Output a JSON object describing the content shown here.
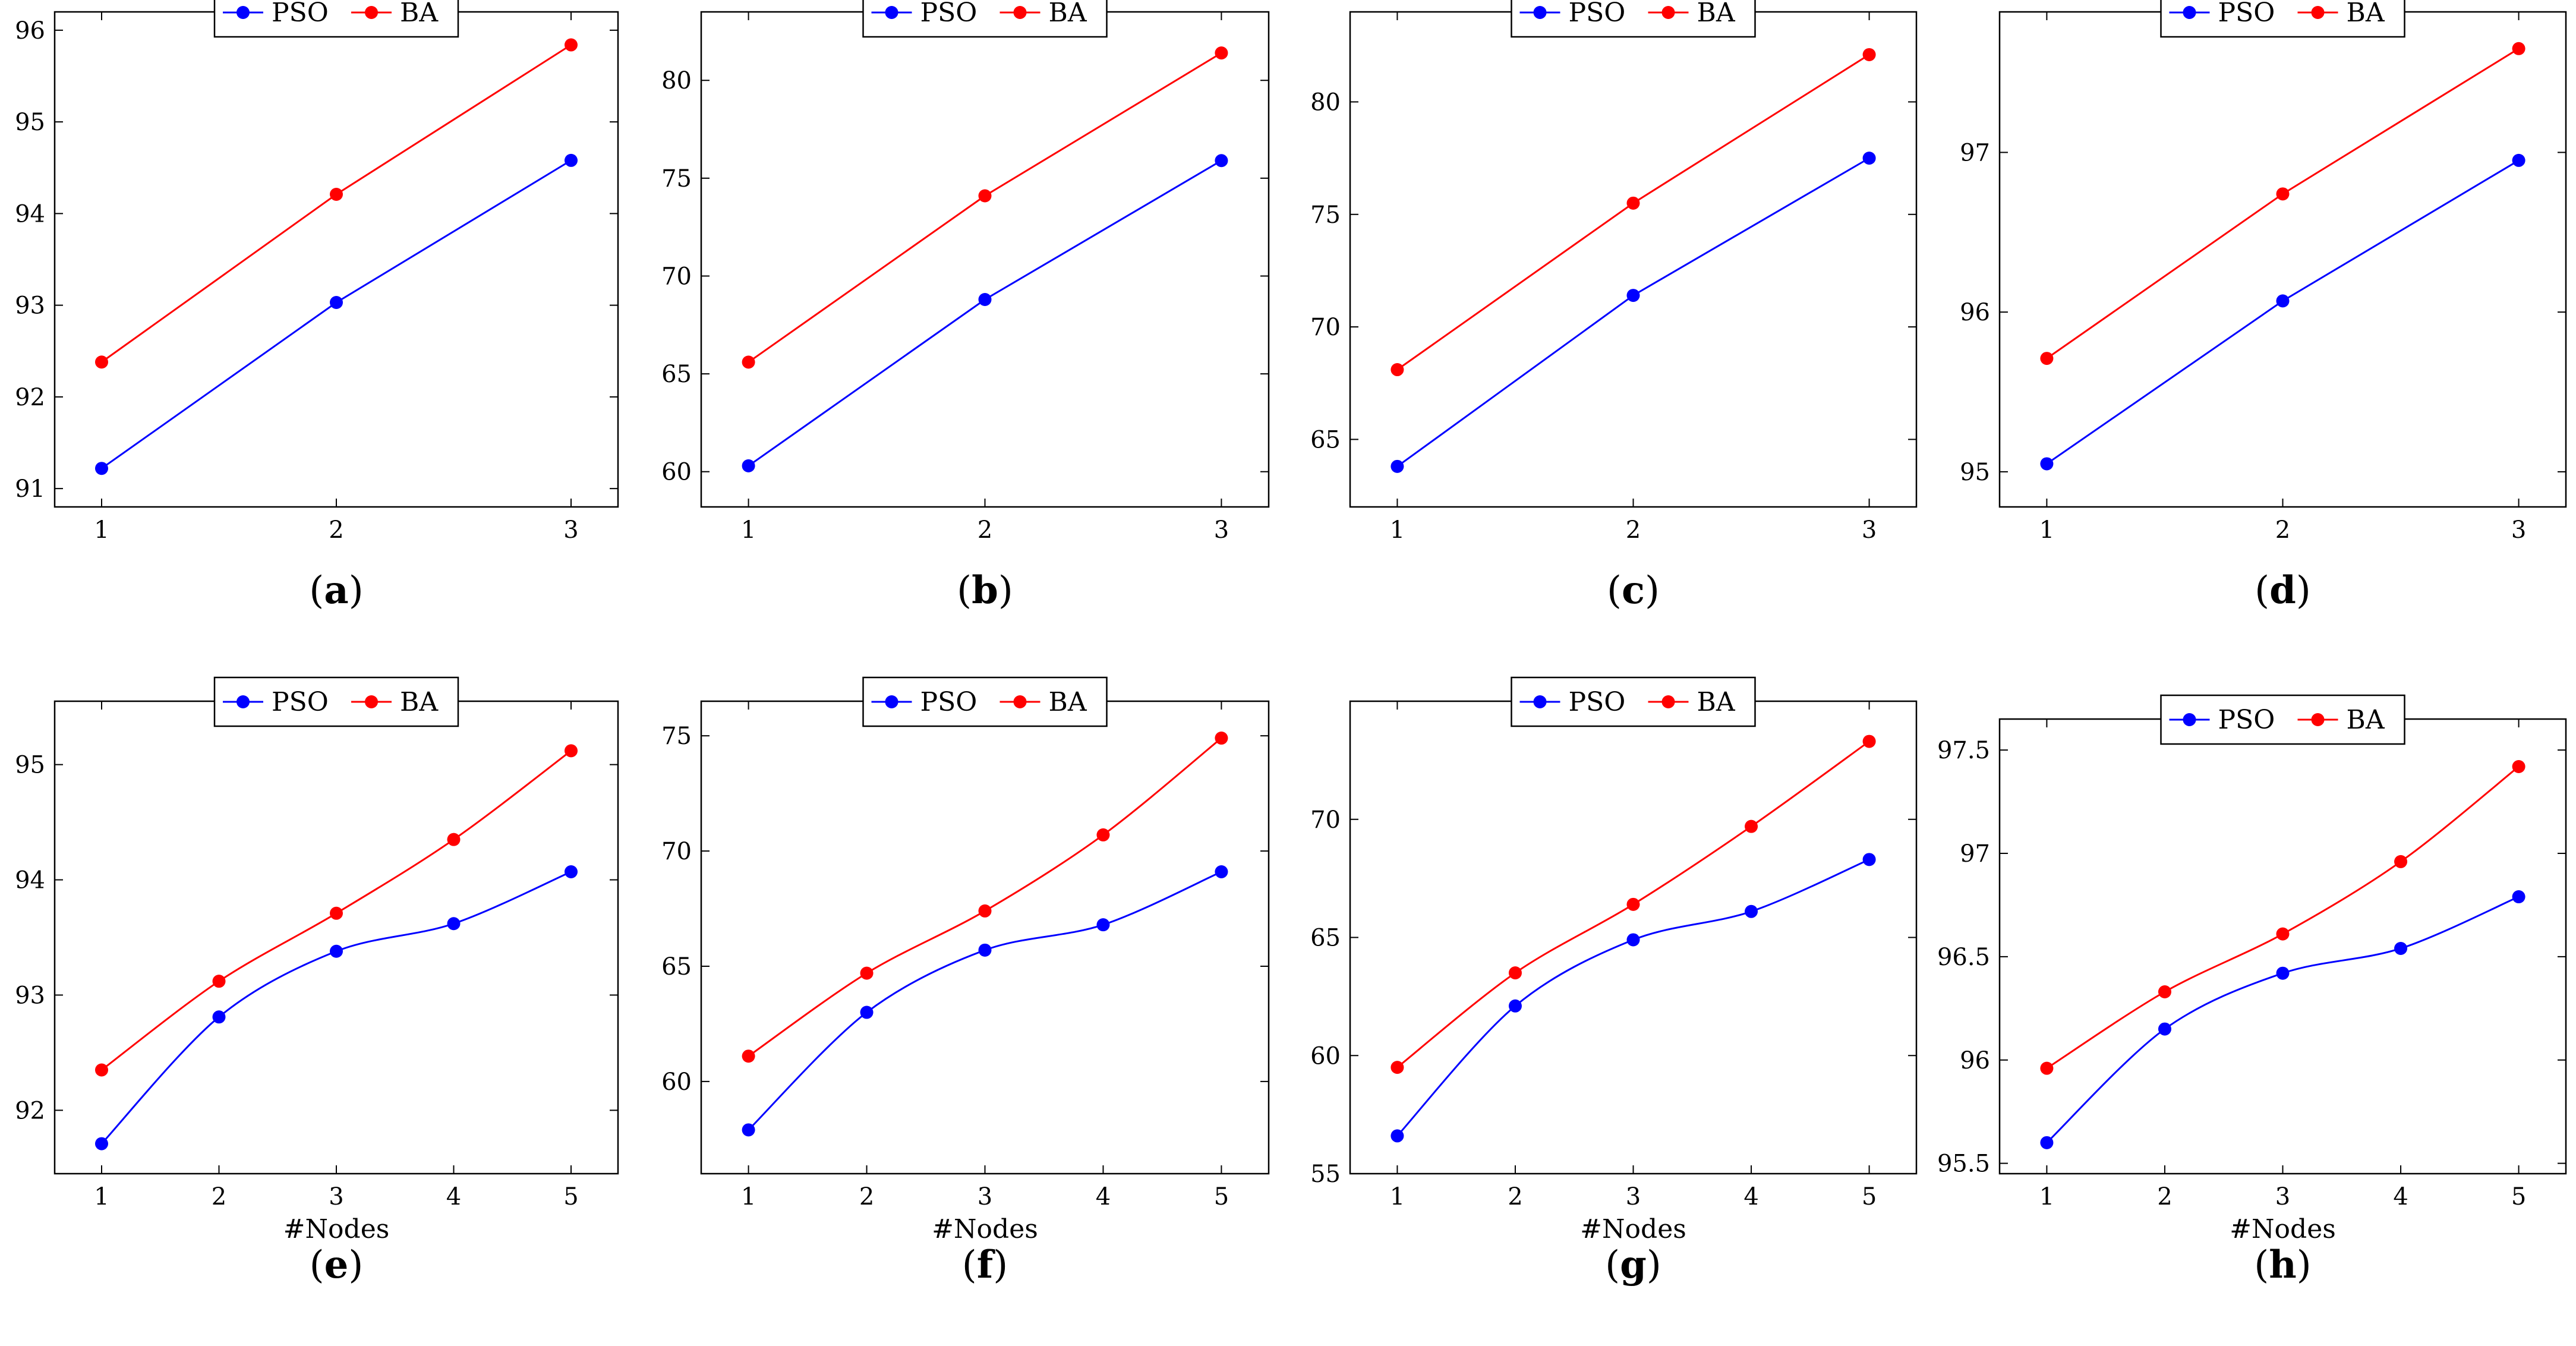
{
  "colors": {
    "pso": "#0000ff",
    "ba": "#ff0000",
    "axis": "#000000"
  },
  "legend": {
    "pso": "PSO",
    "ba": "BA"
  },
  "chart_data": [
    {
      "type": "line",
      "caption": "a",
      "x": [
        1,
        2,
        3
      ],
      "xlim": [
        0.8,
        3.2
      ],
      "ylim": [
        90.8,
        96.2
      ],
      "xticks": [
        "1",
        "2",
        "3"
      ],
      "yticks": [
        91,
        92,
        93,
        94,
        95,
        96
      ],
      "ytick_labels": [
        "91",
        "92",
        "93",
        "94",
        "95",
        "96"
      ],
      "xlabel": "",
      "legend_position": "top-center",
      "series": [
        {
          "name": "PSO",
          "values": [
            91.22,
            93.03,
            94.58
          ]
        },
        {
          "name": "BA",
          "values": [
            92.38,
            94.21,
            95.84
          ]
        }
      ]
    },
    {
      "type": "line",
      "caption": "b",
      "x": [
        1,
        2,
        3
      ],
      "xlim": [
        0.8,
        3.2
      ],
      "ylim": [
        58.2,
        83.5
      ],
      "xticks": [
        "1",
        "2",
        "3"
      ],
      "yticks": [
        60,
        65,
        70,
        75,
        80
      ],
      "ytick_labels": [
        "60",
        "65",
        "70",
        "75",
        "80"
      ],
      "xlabel": "",
      "legend_position": "top-center",
      "series": [
        {
          "name": "PSO",
          "values": [
            60.3,
            68.8,
            75.9
          ]
        },
        {
          "name": "BA",
          "values": [
            65.6,
            74.1,
            81.4
          ]
        }
      ]
    },
    {
      "type": "line",
      "caption": "c",
      "x": [
        1,
        2,
        3
      ],
      "xlim": [
        0.8,
        3.2
      ],
      "ylim": [
        62.0,
        84.0
      ],
      "xticks": [
        "1",
        "2",
        "3"
      ],
      "yticks": [
        65,
        70,
        75,
        80
      ],
      "ytick_labels": [
        "65",
        "70",
        "75",
        "80"
      ],
      "xlabel": "",
      "legend_position": "top-center",
      "series": [
        {
          "name": "PSO",
          "values": [
            63.8,
            71.4,
            77.5
          ]
        },
        {
          "name": "BA",
          "values": [
            68.1,
            75.5,
            82.1
          ]
        }
      ]
    },
    {
      "type": "line",
      "caption": "d",
      "x": [
        1,
        2,
        3
      ],
      "xlim": [
        0.8,
        3.2
      ],
      "ylim": [
        94.78,
        97.88
      ],
      "xticks": [
        "1",
        "2",
        "3"
      ],
      "yticks": [
        95,
        96,
        97
      ],
      "ytick_labels": [
        "95",
        "96",
        "97"
      ],
      "xlabel": "",
      "legend_position": "top-center",
      "series": [
        {
          "name": "PSO",
          "values": [
            95.05,
            96.07,
            96.95
          ]
        },
        {
          "name": "BA",
          "values": [
            95.71,
            96.74,
            97.65
          ]
        }
      ]
    },
    {
      "type": "line",
      "caption": "e",
      "x": [
        1,
        2,
        3,
        4,
        5
      ],
      "xlim": [
        0.6,
        5.4
      ],
      "ylim": [
        91.45,
        95.55
      ],
      "xticks": [
        "1",
        "2",
        "3",
        "4",
        "5"
      ],
      "yticks": [
        92,
        93,
        94,
        95
      ],
      "ytick_labels": [
        "92",
        "93",
        "94",
        "95"
      ],
      "xlabel": "#Nodes",
      "legend_position": "top-center",
      "series": [
        {
          "name": "PSO",
          "values": [
            91.71,
            92.81,
            93.38,
            93.62,
            94.07
          ]
        },
        {
          "name": "BA",
          "values": [
            92.35,
            93.12,
            93.71,
            94.35,
            95.12
          ]
        }
      ]
    },
    {
      "type": "line",
      "caption": "f",
      "x": [
        1,
        2,
        3,
        4,
        5
      ],
      "xlim": [
        0.6,
        5.4
      ],
      "ylim": [
        56.0,
        76.5
      ],
      "xticks": [
        "1",
        "2",
        "3",
        "4",
        "5"
      ],
      "yticks": [
        60,
        65,
        70,
        75
      ],
      "ytick_labels": [
        "60",
        "65",
        "70",
        "75"
      ],
      "xlabel": "#Nodes",
      "legend_position": "top-center",
      "series": [
        {
          "name": "PSO",
          "values": [
            57.9,
            63.0,
            65.7,
            66.8,
            69.1
          ]
        },
        {
          "name": "BA",
          "values": [
            61.1,
            64.7,
            67.4,
            70.7,
            74.9
          ]
        }
      ]
    },
    {
      "type": "line",
      "caption": "g",
      "x": [
        1,
        2,
        3,
        4,
        5
      ],
      "xlim": [
        0.6,
        5.4
      ],
      "ylim": [
        55.0,
        75.0
      ],
      "xticks": [
        "1",
        "2",
        "3",
        "4",
        "5"
      ],
      "yticks": [
        55,
        60,
        65,
        70
      ],
      "ytick_labels": [
        "55",
        "60",
        "65",
        "70"
      ],
      "xlabel": "#Nodes",
      "legend_position": "top-center",
      "series": [
        {
          "name": "PSO",
          "values": [
            56.6,
            62.1,
            64.9,
            66.1,
            68.3
          ]
        },
        {
          "name": "BA",
          "values": [
            59.5,
            63.5,
            66.4,
            69.7,
            73.3
          ]
        }
      ]
    },
    {
      "type": "line",
      "caption": "h",
      "x": [
        1,
        2,
        3,
        4,
        5
      ],
      "xlim": [
        0.6,
        5.4
      ],
      "ylim": [
        95.45,
        97.65
      ],
      "xticks": [
        "1",
        "2",
        "3",
        "4",
        "5"
      ],
      "yticks": [
        95.5,
        96,
        96.5,
        97,
        97.5
      ],
      "ytick_labels": [
        "95.5",
        "96",
        "96.5",
        "97",
        "97.5"
      ],
      "xlabel": "#Nodes",
      "legend_position": "top-center",
      "series": [
        {
          "name": "PSO",
          "values": [
            95.6,
            96.15,
            96.42,
            96.54,
            96.79
          ]
        },
        {
          "name": "BA",
          "values": [
            95.96,
            96.33,
            96.61,
            96.96,
            97.42
          ]
        }
      ]
    }
  ]
}
